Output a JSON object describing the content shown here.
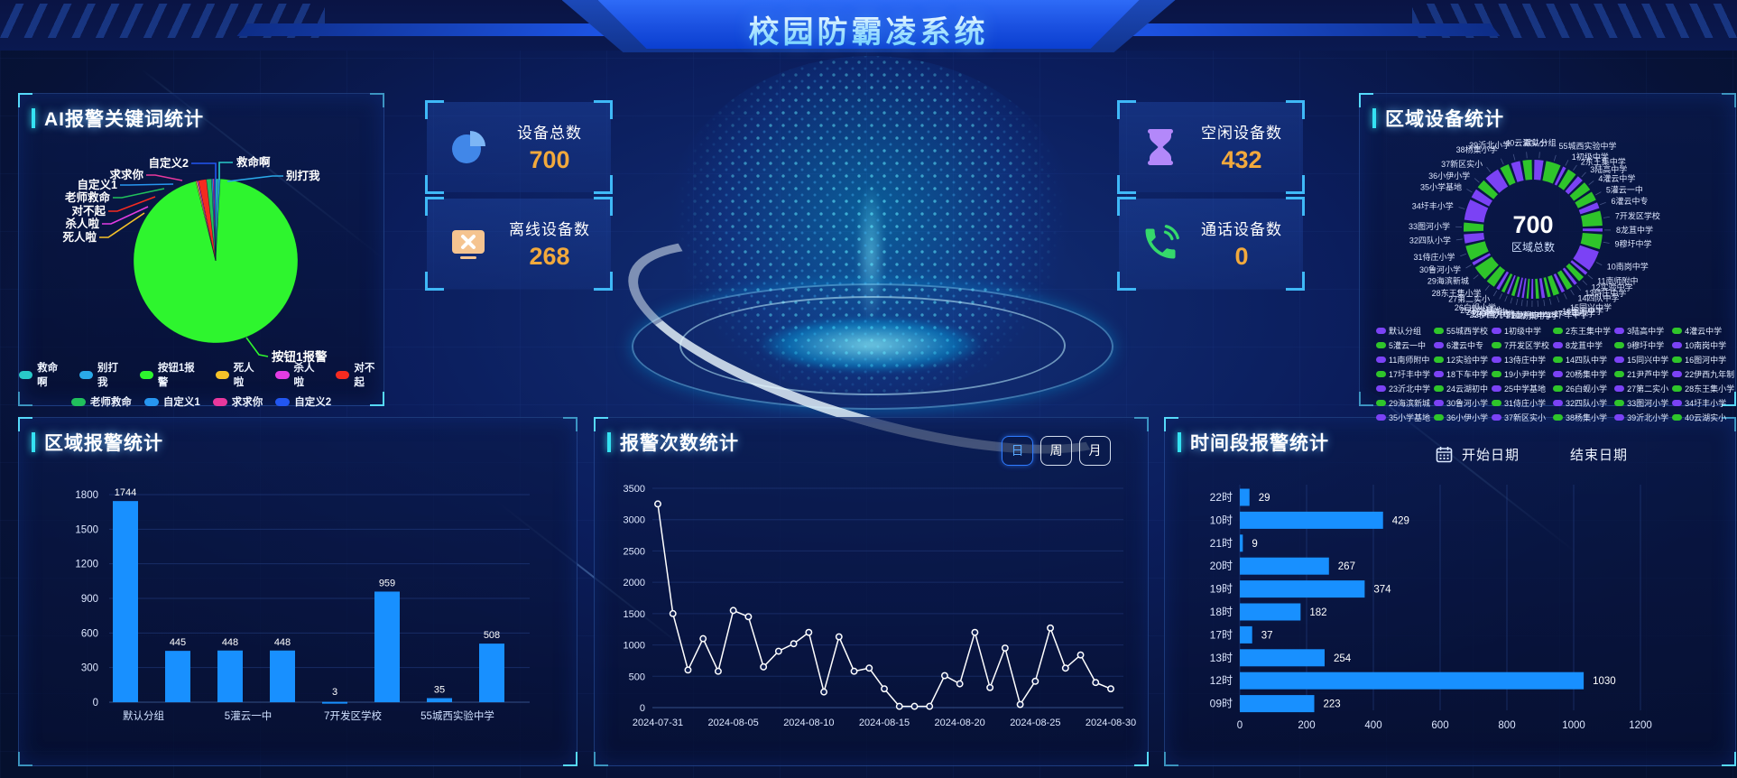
{
  "header": {
    "title": "校园防霸凌系统"
  },
  "stats": [
    {
      "icon": "pie-chart-icon",
      "label": "设备总数",
      "value": "700"
    },
    {
      "icon": "offline-device-icon",
      "label": "离线设备数",
      "value": "268"
    },
    {
      "icon": "hourglass-icon",
      "label": "空闲设备数",
      "value": "432"
    },
    {
      "icon": "phone-icon",
      "label": "通话设备数",
      "value": "0"
    }
  ],
  "panels": {
    "keyword": {
      "title": "AI报警关键词统计"
    },
    "region_device": {
      "title": "区域设备统计"
    },
    "region_alarm": {
      "title": "区域报警统计"
    },
    "alarm_count": {
      "title": "报警次数统计",
      "range_buttons": [
        "日",
        "周",
        "月"
      ],
      "active_button": "日"
    },
    "time_alarm": {
      "title": "时间段报警统计",
      "start_date_label": "开始日期",
      "end_date_label": "结束日期"
    }
  },
  "colors": {
    "bar_blue": "#1890ff",
    "accent_cyan": "#35e2f2",
    "value_orange": "#f2a93c",
    "donut_purple": "#7b42f5",
    "donut_green": "#2fc52a",
    "line_white": "#ffffff"
  },
  "chart_data": [
    {
      "id": "keyword-pie",
      "type": "pie",
      "title": "AI报警关键词统计",
      "slices": [
        {
          "name": "救命啊",
          "value": 0.5,
          "color": "#29c8c8"
        },
        {
          "name": "别打我",
          "value": 0.4,
          "color": "#2aa9e8"
        },
        {
          "name": "按钮1报警",
          "value": 95.2,
          "color": "#2ef52e"
        },
        {
          "name": "死人啦",
          "value": 0.25,
          "color": "#f5c229"
        },
        {
          "name": "杀人啦",
          "value": 0.25,
          "color": "#e33ce3"
        },
        {
          "name": "对不起",
          "value": 1.6,
          "color": "#f52b20"
        },
        {
          "name": "老师救命",
          "value": 1.0,
          "color": "#21c05c"
        },
        {
          "name": "自定义1",
          "value": 0.25,
          "color": "#2796f0"
        },
        {
          "name": "求求你",
          "value": 0.25,
          "color": "#e8389c"
        },
        {
          "name": "自定义2",
          "value": 0.3,
          "color": "#2256f0"
        }
      ]
    },
    {
      "id": "region-device-donut",
      "type": "pie",
      "shape": "donut",
      "total": "700",
      "total_label": "区域总数",
      "items": [
        {
          "label": "默认分组",
          "color": "purple",
          "weight": 2
        },
        {
          "label": "55城西实验中学",
          "legend": "55城西学校",
          "color": "green",
          "weight": 3
        },
        {
          "label": "1初级中学",
          "color": "purple",
          "weight": 1
        },
        {
          "label": "2东王集中学",
          "color": "green",
          "weight": 2
        },
        {
          "label": "3陆高中学",
          "color": "purple",
          "weight": 1.5
        },
        {
          "label": "4灌云中学",
          "color": "green",
          "weight": 2
        },
        {
          "label": "5灌云一中",
          "color": "green",
          "weight": 2
        },
        {
          "label": "6灌云中专",
          "color": "purple",
          "weight": 1.5
        },
        {
          "label": "7开发区学校",
          "color": "green",
          "weight": 3
        },
        {
          "label": "8龙苴中学",
          "color": "purple",
          "weight": 1
        },
        {
          "label": "9穆圩中学",
          "color": "green",
          "weight": 3
        },
        {
          "label": "10南岗中学",
          "color": "purple",
          "weight": 4
        },
        {
          "label": "11南师附中",
          "color": "purple",
          "weight": 1
        },
        {
          "label": "12实验中学",
          "color": "green",
          "weight": 1.5
        },
        {
          "label": "13侍庄中学",
          "color": "purple",
          "weight": 1
        },
        {
          "label": "14四队中学",
          "color": "green",
          "weight": 1.5
        },
        {
          "label": "15同兴中学",
          "color": "purple",
          "weight": 1
        },
        {
          "label": "16图河中学",
          "color": "green",
          "weight": 1.5
        },
        {
          "label": "17圩丰中学",
          "color": "green",
          "weight": 1
        },
        {
          "label": "18下车中学",
          "color": "purple",
          "weight": 1
        },
        {
          "label": "19小尹中学",
          "color": "green",
          "weight": 1
        },
        {
          "label": "20杨集中学",
          "color": "purple",
          "weight": 0.8
        },
        {
          "label": "21尹芦中学",
          "color": "green",
          "weight": 0.8
        },
        {
          "label": "22伊西九年制",
          "color": "purple",
          "weight": 0.8
        },
        {
          "label": "23沂北中学",
          "color": "purple",
          "weight": 0.8
        },
        {
          "label": "24云湖初中",
          "color": "green",
          "weight": 1
        },
        {
          "label": "25中学基地",
          "color": "purple",
          "weight": 0.8
        },
        {
          "label": "26白蚬小学",
          "color": "green",
          "weight": 1
        },
        {
          "label": "27第二实小",
          "color": "purple",
          "weight": 1
        },
        {
          "label": "28东王集小学",
          "color": "green",
          "weight": 2
        },
        {
          "label": "29海滨新城",
          "color": "green",
          "weight": 3
        },
        {
          "label": "30鲁河小学",
          "color": "purple",
          "weight": 1
        },
        {
          "label": "31侍庄小学",
          "color": "green",
          "weight": 3
        },
        {
          "label": "32四队小学",
          "color": "purple",
          "weight": 2
        },
        {
          "label": "33图河小学",
          "color": "green",
          "weight": 2
        },
        {
          "label": "34圩丰小学",
          "color": "purple",
          "weight": 4
        },
        {
          "label": "35小学基地",
          "color": "purple",
          "weight": 2
        },
        {
          "label": "36小伊小学",
          "color": "green",
          "weight": 2
        },
        {
          "label": "37新区实小",
          "color": "purple",
          "weight": 3
        },
        {
          "label": "38杨集小学",
          "color": "green",
          "weight": 2
        },
        {
          "label": "39沂北小学",
          "color": "purple",
          "weight": 2
        },
        {
          "label": "40云湖实小",
          "color": "green",
          "weight": 2
        }
      ]
    },
    {
      "id": "region-alarm-bars",
      "type": "bar",
      "title": "区域报警统计",
      "values": [
        1744,
        445,
        448,
        448,
        3,
        959,
        35,
        508
      ],
      "x_tick_labels": [
        "默认分组",
        "5灌云一中",
        "7开发区学校",
        "55城西实验中学"
      ],
      "x_tick_positions": [
        0,
        2,
        4,
        6
      ],
      "ylim": [
        0,
        1800
      ],
      "ytick_step": 300
    },
    {
      "id": "alarm-count-line",
      "type": "line",
      "title": "报警次数统计",
      "x_labels": [
        "2024-07-31",
        "2024-08-05",
        "2024-08-10",
        "2024-08-15",
        "2024-08-20",
        "2024-08-25",
        "2024-08-30"
      ],
      "label_every": 5,
      "values": [
        3250,
        1500,
        600,
        1100,
        580,
        1550,
        1450,
        650,
        900,
        1020,
        1200,
        250,
        1130,
        580,
        630,
        300,
        20,
        20,
        20,
        510,
        380,
        1200,
        320,
        950,
        50,
        420,
        1270,
        630,
        840,
        400,
        300
      ],
      "ylim": [
        0,
        3500
      ],
      "ytick_step": 500
    },
    {
      "id": "time-alarm-hbars",
      "type": "bar-horizontal",
      "title": "时间段报警统计",
      "categories": [
        "22时",
        "10时",
        "21时",
        "20时",
        "19时",
        "18时",
        "17时",
        "13时",
        "12时",
        "09时"
      ],
      "values": [
        29,
        429,
        9,
        267,
        374,
        182,
        37,
        254,
        1030,
        223
      ],
      "xlim": [
        0,
        1200
      ],
      "xtick_step": 200
    }
  ]
}
